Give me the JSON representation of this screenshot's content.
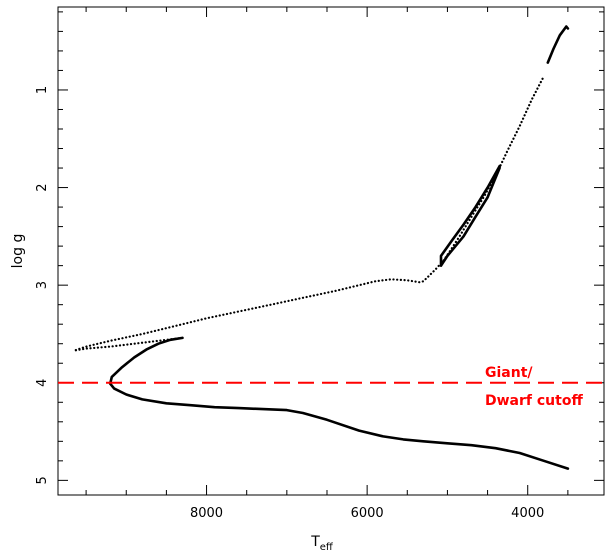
{
  "chart_data": {
    "type": "line",
    "title": "",
    "xlabel": "T",
    "xlabel_subscript": "eff",
    "ylabel": "log g",
    "xlim": [
      9850,
      3050
    ],
    "ylim": [
      0.15,
      5.15
    ],
    "x_reversed": true,
    "y_reversed": true,
    "xticks": [
      8000,
      6000,
      4000
    ],
    "xtick_labels": [
      "8000",
      "6000",
      "4000"
    ],
    "yticks": [
      1,
      2,
      3,
      4,
      5
    ],
    "ytick_labels": [
      "1",
      "2",
      "3",
      "4",
      "5"
    ],
    "grid": false,
    "legend": "none",
    "series": [
      {
        "style": "solid",
        "color": "#000000",
        "x": [
          3500,
          3800,
          4100,
          4400,
          4700,
          5000,
          5300,
          5550,
          5800,
          6100,
          6500,
          6800,
          7000,
          7300,
          7600,
          7900,
          8200,
          8500,
          8800,
          9000,
          9150,
          9200,
          9180,
          9050,
          8900,
          8750,
          8600,
          8450,
          8300
        ],
        "y": [
          4.88,
          4.8,
          4.72,
          4.67,
          4.64,
          4.62,
          4.6,
          4.58,
          4.55,
          4.49,
          4.38,
          4.31,
          4.28,
          4.27,
          4.26,
          4.25,
          4.23,
          4.21,
          4.17,
          4.12,
          4.06,
          4.01,
          3.94,
          3.84,
          3.74,
          3.66,
          3.6,
          3.56,
          3.54
        ]
      },
      {
        "style": "dotted",
        "color": "#000000",
        "x": [
          8300,
          8600,
          8900,
          9200,
          9500,
          9650,
          9500,
          9200,
          8800,
          8400,
          8000,
          7600,
          7200,
          6800,
          6400,
          6100,
          5900,
          5700,
          5500,
          5350,
          5300,
          5250,
          5150,
          5050,
          4950,
          4850,
          4700,
          4550,
          4400,
          4250,
          4100,
          3950,
          3800
        ],
        "y": [
          3.54,
          3.57,
          3.6,
          3.63,
          3.65,
          3.67,
          3.63,
          3.57,
          3.5,
          3.42,
          3.34,
          3.27,
          3.2,
          3.13,
          3.06,
          3.0,
          2.96,
          2.94,
          2.95,
          2.97,
          2.96,
          2.92,
          2.84,
          2.75,
          2.63,
          2.5,
          2.3,
          2.1,
          1.88,
          1.62,
          1.37,
          1.1,
          0.86
        ]
      },
      {
        "style": "solid",
        "color": "#000000",
        "x": [
          5080,
          5080,
          4950,
          4800,
          4650,
          4500,
          4350,
          4350,
          4500,
          4650,
          4800,
          5000,
          5080
        ],
        "y": [
          2.8,
          2.7,
          2.55,
          2.38,
          2.2,
          2.0,
          1.78,
          1.8,
          2.1,
          2.3,
          2.5,
          2.7,
          2.8
        ]
      },
      {
        "style": "solid",
        "color": "#000000",
        "x": [
          3750,
          3680,
          3600,
          3520,
          3500
        ],
        "y": [
          0.72,
          0.58,
          0.44,
          0.35,
          0.37
        ]
      }
    ],
    "cutoff_line": {
      "y": 4.0,
      "color": "#ff0000",
      "style": "dashed"
    },
    "annotation": {
      "lines": [
        "Giant/",
        "Dwarf cutoff"
      ],
      "color": "#ff0000"
    }
  }
}
